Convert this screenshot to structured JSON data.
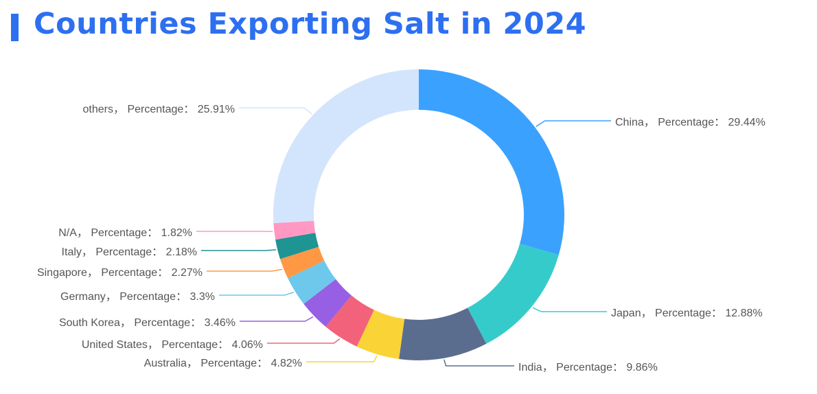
{
  "title": "Countries Exporting Salt in 2024",
  "chart_data": {
    "type": "pie",
    "title": "Countries Exporting Salt in 2024",
    "value_label": "Percentage",
    "unit": "%",
    "slices": [
      {
        "label": "China",
        "value": 29.44,
        "color": "#3ba1ff"
      },
      {
        "label": "Japan",
        "value": 12.88,
        "color": "#36cbcb"
      },
      {
        "label": "India",
        "value": 9.86,
        "color": "#5b6d8f"
      },
      {
        "label": "Australia",
        "value": 4.82,
        "color": "#fad337"
      },
      {
        "label": "United States",
        "value": 4.06,
        "color": "#f2637b"
      },
      {
        "label": "South Korea",
        "value": 3.46,
        "color": "#975fe4"
      },
      {
        "label": "Germany",
        "value": 3.3,
        "color": "#6dc8ec"
      },
      {
        "label": "Singapore",
        "value": 2.27,
        "color": "#ff9845"
      },
      {
        "label": "Italy",
        "value": 2.18,
        "color": "#1e9493"
      },
      {
        "label": "N/A",
        "value": 1.82,
        "color": "#ff99c3"
      },
      {
        "label": "others",
        "value": 25.91,
        "color": "#d3e5fc"
      }
    ]
  }
}
